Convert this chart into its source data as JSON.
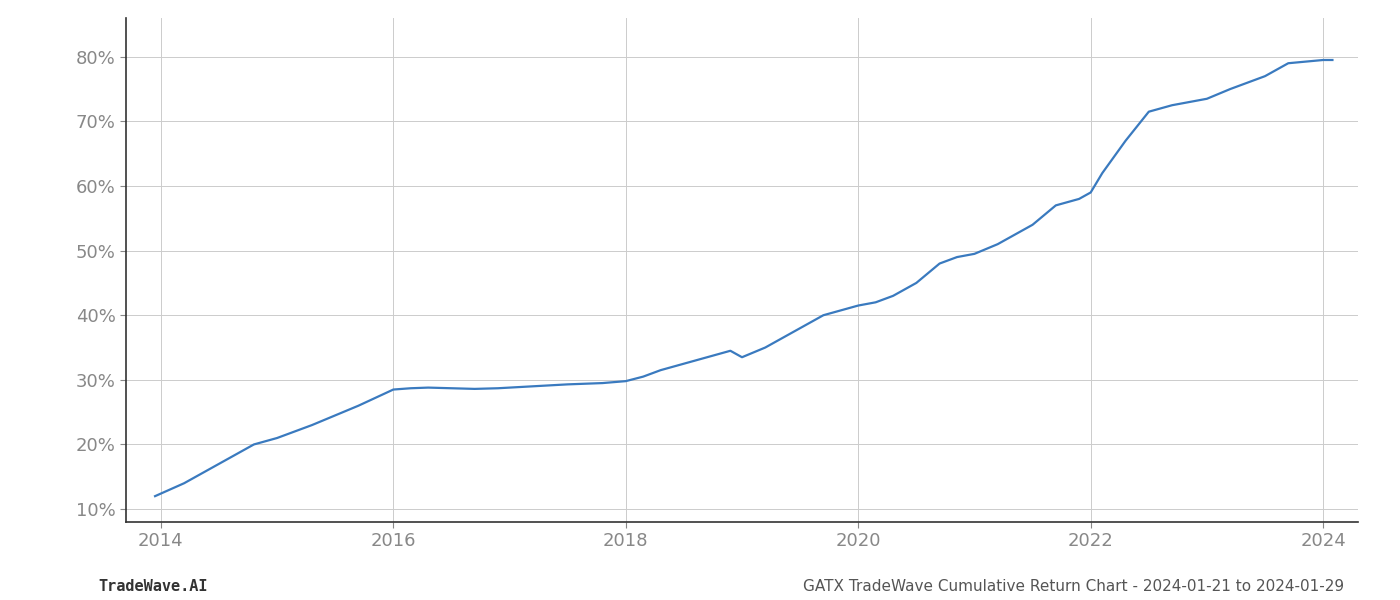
{
  "x_years": [
    2013.95,
    2014.2,
    2014.5,
    2014.8,
    2015.0,
    2015.3,
    2015.7,
    2016.0,
    2016.15,
    2016.3,
    2016.5,
    2016.7,
    2016.9,
    2017.0,
    2017.2,
    2017.5,
    2017.8,
    2018.0,
    2018.15,
    2018.3,
    2018.5,
    2018.7,
    2018.9,
    2019.0,
    2019.2,
    2019.5,
    2019.7,
    2019.9,
    2020.0,
    2020.15,
    2020.3,
    2020.5,
    2020.7,
    2020.85,
    2021.0,
    2021.2,
    2021.5,
    2021.7,
    2021.9,
    2022.0,
    2022.1,
    2022.3,
    2022.5,
    2022.7,
    2022.85,
    2023.0,
    2023.2,
    2023.5,
    2023.7,
    2024.0,
    2024.08
  ],
  "y_values": [
    12,
    14,
    17,
    20,
    21,
    23,
    26,
    28.5,
    28.7,
    28.8,
    28.7,
    28.6,
    28.7,
    28.8,
    29.0,
    29.3,
    29.5,
    29.8,
    30.5,
    31.5,
    32.5,
    33.5,
    34.5,
    33.5,
    35,
    38,
    40,
    41,
    41.5,
    42,
    43,
    45,
    48,
    49,
    49.5,
    51,
    54,
    57,
    58,
    59,
    62,
    67,
    71.5,
    72.5,
    73,
    73.5,
    75,
    77,
    79,
    79.5,
    79.5
  ],
  "line_color": "#3a7abf",
  "line_width": 1.6,
  "xlim": [
    2013.7,
    2024.3
  ],
  "ylim": [
    8,
    86
  ],
  "yticks": [
    10,
    20,
    30,
    40,
    50,
    60,
    70,
    80
  ],
  "xticks": [
    2014,
    2016,
    2018,
    2020,
    2022,
    2024
  ],
  "grid_color": "#cccccc",
  "grid_linestyle": "-",
  "grid_linewidth": 0.7,
  "background_color": "#ffffff",
  "footer_left": "TradeWave.AI",
  "footer_right": "GATX TradeWave Cumulative Return Chart - 2024-01-21 to 2024-01-29",
  "footer_fontsize": 11,
  "tick_fontsize": 13,
  "tick_color": "#888888",
  "spine_color": "#333333",
  "left_spine_color": "#333333"
}
